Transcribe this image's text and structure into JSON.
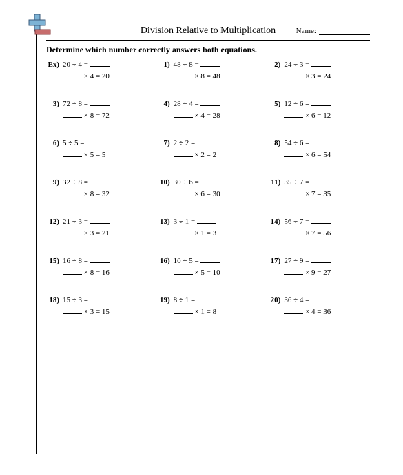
{
  "title": "Division Relative to Multiplication",
  "name_label": "Name:",
  "instruction": "Determine which number correctly answers both equations.",
  "colors": {
    "text": "#000000",
    "background": "#ffffff",
    "icon_blue": "#7db3d5",
    "icon_red": "#c76d6d",
    "icon_stroke": "#3a5a7a"
  },
  "type": "worksheet",
  "font": {
    "family": "Times New Roman",
    "title_size": 14,
    "body_size": 11
  },
  "problems": [
    {
      "label": "Ex)",
      "dividend": 20,
      "divisor": 4,
      "product": 20
    },
    {
      "label": "1)",
      "dividend": 48,
      "divisor": 8,
      "product": 48
    },
    {
      "label": "2)",
      "dividend": 24,
      "divisor": 3,
      "product": 24
    },
    {
      "label": "3)",
      "dividend": 72,
      "divisor": 8,
      "product": 72
    },
    {
      "label": "4)",
      "dividend": 28,
      "divisor": 4,
      "product": 28
    },
    {
      "label": "5)",
      "dividend": 12,
      "divisor": 6,
      "product": 12
    },
    {
      "label": "6)",
      "dividend": 5,
      "divisor": 5,
      "product": 5
    },
    {
      "label": "7)",
      "dividend": 2,
      "divisor": 2,
      "product": 2
    },
    {
      "label": "8)",
      "dividend": 54,
      "divisor": 6,
      "product": 54
    },
    {
      "label": "9)",
      "dividend": 32,
      "divisor": 8,
      "product": 32
    },
    {
      "label": "10)",
      "dividend": 30,
      "divisor": 6,
      "product": 30
    },
    {
      "label": "11)",
      "dividend": 35,
      "divisor": 7,
      "product": 35
    },
    {
      "label": "12)",
      "dividend": 21,
      "divisor": 3,
      "product": 21
    },
    {
      "label": "13)",
      "dividend": 3,
      "divisor": 1,
      "product": 3
    },
    {
      "label": "14)",
      "dividend": 56,
      "divisor": 7,
      "product": 56
    },
    {
      "label": "15)",
      "dividend": 16,
      "divisor": 8,
      "product": 16
    },
    {
      "label": "16)",
      "dividend": 10,
      "divisor": 5,
      "product": 10
    },
    {
      "label": "17)",
      "dividend": 27,
      "divisor": 9,
      "product": 27
    },
    {
      "label": "18)",
      "dividend": 15,
      "divisor": 3,
      "product": 15
    },
    {
      "label": "19)",
      "dividend": 8,
      "divisor": 1,
      "product": 8
    },
    {
      "label": "20)",
      "dividend": 36,
      "divisor": 4,
      "product": 36
    }
  ]
}
